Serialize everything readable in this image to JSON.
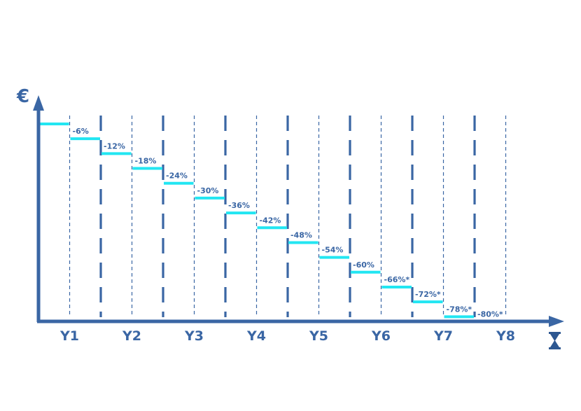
{
  "colors": {
    "axis": "#3a66a4",
    "step": "#22e6f2",
    "label": "#3a66a4"
  },
  "axis_icons": {
    "y_symbol": "€",
    "x_icon": "hourglass-icon"
  },
  "chart_data": {
    "type": "line",
    "step": true,
    "title": "",
    "xlabel": "",
    "ylabel": "",
    "categories": [
      "Y1",
      "Y2",
      "Y3",
      "Y4",
      "Y5",
      "Y6",
      "Y7",
      "Y8"
    ],
    "ylim": [
      -100,
      0
    ],
    "periods_per_year": 2,
    "x": [
      0,
      1,
      2,
      3,
      4,
      5,
      6,
      7,
      8,
      9,
      10,
      11,
      12,
      13,
      14,
      15
    ],
    "values": [
      0,
      -6,
      -12,
      -18,
      -24,
      -30,
      -36,
      -42,
      -48,
      -54,
      -60,
      -66,
      -72,
      -78,
      -80,
      -80
    ],
    "labels": [
      "",
      "-6%",
      "-12%",
      "-18%",
      "-24%",
      "-30%",
      "-36%",
      "-42%",
      "-48%",
      "-54%",
      "-60%",
      "-66%*",
      "-72%*",
      "-78%*",
      "-80%*",
      ""
    ],
    "continues": true,
    "grid": true
  }
}
